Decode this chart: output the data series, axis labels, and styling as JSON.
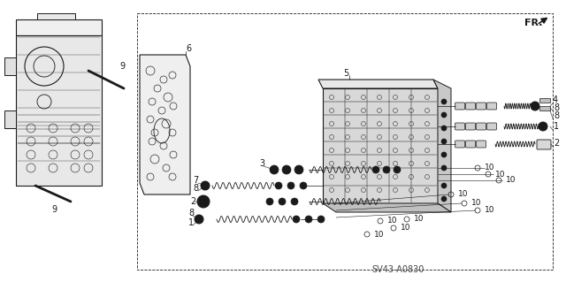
{
  "background_color": "#ffffff",
  "line_color": "#1a1a1a",
  "figure_width": 6.4,
  "figure_height": 3.19,
  "dpi": 100,
  "diagram_code_label": "SV43-A0830",
  "fr_label": "FR."
}
